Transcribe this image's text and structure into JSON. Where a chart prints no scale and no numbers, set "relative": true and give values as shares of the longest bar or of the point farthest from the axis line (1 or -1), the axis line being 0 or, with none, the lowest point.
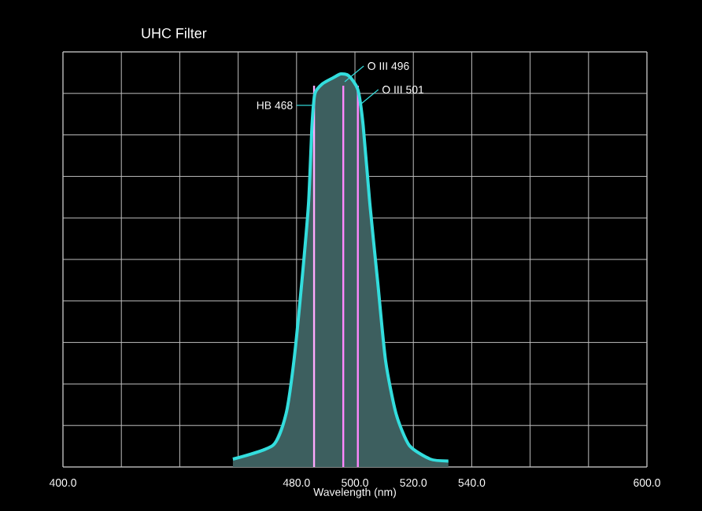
{
  "chart_data": {
    "type": "area",
    "title": "UHC Filter",
    "xlabel": "Wavelength (nm)",
    "relative": true,
    "grid": true,
    "color": "#33dddd",
    "x": [
      458.2,
      471.9,
      476.4,
      479.1,
      481.8,
      484.1,
      485.3,
      486.3,
      488.9,
      492.5,
      495.2,
      497.9,
      501.0,
      502.8,
      505.1,
      507.8,
      510.5,
      514.1,
      518.6,
      525.8,
      532.0
    ],
    "values": [
      0.02,
      0.055,
      0.135,
      0.27,
      0.47,
      0.67,
      0.87,
      0.95,
      0.975,
      0.99,
      1.0,
      0.995,
      0.96,
      0.87,
      0.67,
      0.47,
      0.27,
      0.135,
      0.055,
      0.02,
      0.015
    ],
    "xlim": [
      400,
      600
    ],
    "xticks": [
      {
        "value": 400,
        "label": "400.0"
      },
      {
        "value": 420,
        "label": null
      },
      {
        "value": 440,
        "label": null
      },
      {
        "value": 460,
        "label": null
      },
      {
        "value": 480,
        "label": "480.0"
      },
      {
        "value": 500,
        "label": "500.0"
      },
      {
        "value": 520,
        "label": "520.0"
      },
      {
        "value": 540,
        "label": "540.0"
      },
      {
        "value": 560,
        "label": null
      },
      {
        "value": 580,
        "label": null
      },
      {
        "value": 600,
        "label": "600.0"
      }
    ],
    "ref_lines": [
      {
        "axis": "x",
        "value": 486,
        "label": "HB 468",
        "color": "#ffaaff"
      },
      {
        "axis": "x",
        "value": 496,
        "label": "O III 496",
        "color": "#ff88ff"
      },
      {
        "axis": "x",
        "value": 501,
        "label": "O III 501",
        "color": "#ff88ff"
      }
    ]
  }
}
